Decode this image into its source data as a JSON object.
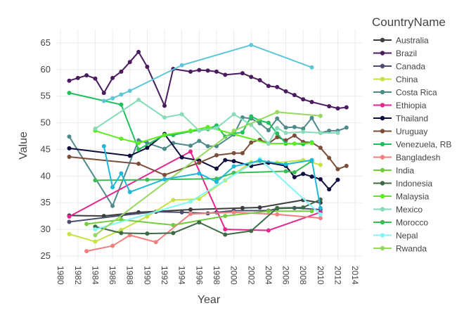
{
  "chart_data": {
    "type": "line",
    "title": "",
    "xlabel": "Year",
    "ylabel": "Value",
    "xlim": [
      1979.5,
      2014.8
    ],
    "ylim": [
      24.2,
      67.5
    ],
    "xticks": [
      1980,
      1982,
      1984,
      1986,
      1988,
      1990,
      1992,
      1994,
      1996,
      1998,
      2000,
      2002,
      2004,
      2006,
      2008,
      2010,
      2012,
      2014
    ],
    "yticks": [
      25,
      30,
      35,
      40,
      45,
      50,
      55,
      60,
      65
    ],
    "grid": true,
    "legend_title": "CountryName",
    "legend_position": "right",
    "series": [
      {
        "name": "Australia",
        "color": "#3d3d3d",
        "x": [
          1981,
          1985,
          1989,
          1995,
          2001,
          2003,
          2008,
          2010
        ],
        "y": [
          32.6,
          32.5,
          33.2,
          33.7,
          34.0,
          34.1,
          35.5,
          35.0
        ]
      },
      {
        "name": "Brazil",
        "color": "#4a1b5e",
        "x": [
          1981,
          1982,
          1983,
          1984,
          1985,
          1986,
          1987,
          1988,
          1989,
          1990,
          1992,
          1993,
          1995,
          1996,
          1997,
          1998,
          1999,
          2001,
          2002,
          2003,
          2004,
          2005,
          2006,
          2007,
          2008,
          2009,
          2011,
          2012,
          2013
        ],
        "y": [
          57.9,
          58.4,
          58.9,
          58.3,
          55.6,
          58.4,
          59.6,
          61.4,
          63.3,
          60.5,
          53.2,
          60.1,
          59.6,
          59.9,
          59.8,
          59.6,
          59.0,
          59.3,
          58.6,
          58.0,
          56.9,
          56.7,
          55.9,
          55.2,
          54.4,
          53.9,
          53.1,
          52.7,
          52.9
        ]
      },
      {
        "name": "Canada",
        "color": "#4b4e6e",
        "x": [
          1981,
          1987,
          1991,
          1994,
          1997,
          1998,
          2000,
          2004,
          2005,
          2007,
          2010
        ],
        "y": [
          31.4,
          32.6,
          33.3,
          33.2,
          33.0,
          33.2,
          33.5,
          33.5,
          33.9,
          34.0,
          33.7
        ]
      },
      {
        "name": "China",
        "color": "#c6e342",
        "x": [
          1981,
          1984,
          1987,
          1990,
          1993,
          1996,
          1999,
          2002,
          2005,
          2008,
          2010
        ],
        "y": [
          29.1,
          27.7,
          29.9,
          32.4,
          35.5,
          35.7,
          39.2,
          42.6,
          42.5,
          43.0,
          42.1
        ]
      },
      {
        "name": "Costa Rica",
        "color": "#4e8a8a",
        "x": [
          1981,
          1986,
          1989,
          1990,
          1992,
          1993,
          1995,
          1996,
          1997,
          1998,
          2000,
          2001,
          2002,
          2003,
          2004,
          2005,
          2006,
          2007,
          2008,
          2009,
          2010,
          2011,
          2012,
          2013
        ],
        "y": [
          47.4,
          34.4,
          46.7,
          46.2,
          45.1,
          46.2,
          45.7,
          46.6,
          45.6,
          45.6,
          47.8,
          51.0,
          50.8,
          49.9,
          48.6,
          50.8,
          49.1,
          49.2,
          48.9,
          50.9,
          48.1,
          48.5,
          48.5,
          49.1
        ]
      },
      {
        "name": "Ethiopia",
        "color": "#e3278e",
        "x": [
          1981,
          1995,
          1999,
          2004,
          2010
        ],
        "y": [
          32.4,
          44.6,
          30.0,
          29.8,
          33.2
        ]
      },
      {
        "name": "Thailand",
        "color": "#0d0d3d",
        "x": [
          1981,
          1988,
          1990,
          1992,
          1994,
          1996,
          1998,
          1999,
          2000,
          2002,
          2004,
          2006,
          2007,
          2008,
          2009,
          2010,
          2011,
          2012
        ],
        "y": [
          45.2,
          43.8,
          45.3,
          47.9,
          43.5,
          42.9,
          41.4,
          43.0,
          42.8,
          41.9,
          42.5,
          41.9,
          39.8,
          40.4,
          39.9,
          39.4,
          37.5,
          39.3
        ]
      },
      {
        "name": "Uruguay",
        "color": "#7b4e3a",
        "x": [
          1981,
          1989,
          1992,
          1996,
          1998,
          2000,
          2001,
          2002,
          2003,
          2004,
          2005,
          2006,
          2007,
          2008,
          2009,
          2010,
          2011,
          2012,
          2013
        ],
        "y": [
          43.6,
          42.3,
          40.2,
          42.5,
          43.9,
          44.3,
          44.3,
          46.3,
          46.8,
          46.1,
          47.3,
          46.7,
          47.6,
          46.4,
          46.3,
          45.3,
          43.4,
          41.3,
          41.9
        ]
      },
      {
        "name": "Venezuela, RB",
        "color": "#1fc05b",
        "x": [
          1981,
          1987,
          1989,
          1992,
          1993,
          1995,
          1997,
          1998,
          1999,
          2000,
          2001,
          2002,
          2003,
          2004,
          2005,
          2006,
          2008,
          2009
        ],
        "y": [
          55.6,
          53.4,
          45.0,
          47.7,
          47.7,
          48.4,
          48.8,
          49.5,
          47.4,
          48.0,
          48.2,
          51.2,
          50.4,
          50.0,
          48.0,
          46.1,
          46.0,
          46.3
        ]
      },
      {
        "name": "Bangladesh",
        "color": "#f47e7e",
        "x": [
          1983,
          1986,
          1988,
          1991,
          1995,
          2000,
          2005,
          2010
        ],
        "y": [
          25.9,
          26.9,
          28.9,
          27.6,
          32.9,
          33.2,
          32.8,
          32.1
        ]
      },
      {
        "name": "India",
        "color": "#74cd3e",
        "x": [
          1983,
          1987,
          1993,
          1999,
          2004,
          2009
        ],
        "y": [
          31.0,
          31.8,
          30.8,
          32.5,
          33.4,
          33.4
        ]
      },
      {
        "name": "Indonesia",
        "color": "#3e6b45",
        "x": [
          1984,
          1987,
          1990,
          1993,
          1996,
          1999,
          2002,
          2005,
          2008,
          2010
        ],
        "y": [
          30.5,
          29.3,
          29.2,
          29.3,
          31.3,
          29.0,
          29.7,
          34.0,
          34.1,
          35.6
        ]
      },
      {
        "name": "Malaysia",
        "color": "#5cec21",
        "x": [
          1984,
          1987,
          1989,
          1992,
          1995,
          1997,
          2004,
          2007,
          2009
        ],
        "y": [
          48.5,
          47.0,
          46.2,
          47.7,
          48.5,
          49.2,
          46.1,
          46.1,
          46.2
        ]
      },
      {
        "name": "Mexico",
        "color": "#88dbb9",
        "x": [
          1984,
          1989,
          1992,
          1994,
          1996,
          1998,
          2000,
          2002,
          2004,
          2005,
          2006,
          2008,
          2010,
          2012
        ],
        "y": [
          48.9,
          54.3,
          51.0,
          51.6,
          48.5,
          49.0,
          51.6,
          49.6,
          46.1,
          49.0,
          48.1,
          48.3,
          48.1,
          48.1
        ]
      },
      {
        "name": "Morocco",
        "color": "#3bbd54",
        "x": [
          1984,
          1990,
          1998,
          2000,
          2006,
          2007,
          2009
        ],
        "y": [
          39.2,
          39.3,
          39.5,
          40.6,
          40.9,
          40.7,
          42.8
        ]
      },
      {
        "name": "Nepal",
        "color": "#7ff8f5",
        "x": [
          1984,
          1995,
          2003,
          2010
        ],
        "y": [
          30.0,
          35.2,
          43.2,
          32.8
        ]
      },
      {
        "name": "Rwanda",
        "color": "#95d95e",
        "x": [
          1984,
          2000,
          2005,
          2010
        ],
        "y": [
          28.9,
          48.5,
          52.0,
          51.3
        ]
      },
      {
        "name": "",
        "color": "#5dc7d9",
        "x": [
          1985,
          1986,
          1987,
          1988,
          1994,
          2002,
          2009
        ],
        "y": [
          54.1,
          54.6,
          55.3,
          56.0,
          60.8,
          64.6,
          60.4
        ]
      },
      {
        "name": "",
        "color": "#1fb8d8",
        "x": [
          1985,
          1986,
          1987,
          1988,
          1992,
          1996,
          1998,
          2000,
          2003,
          2006,
          2009,
          2010
        ],
        "y": [
          45.6,
          37.9,
          40.5,
          37.0,
          39.4,
          40.5,
          38.9,
          41.8,
          42.9,
          42.2,
          43.0,
          34.0
        ]
      }
    ]
  }
}
